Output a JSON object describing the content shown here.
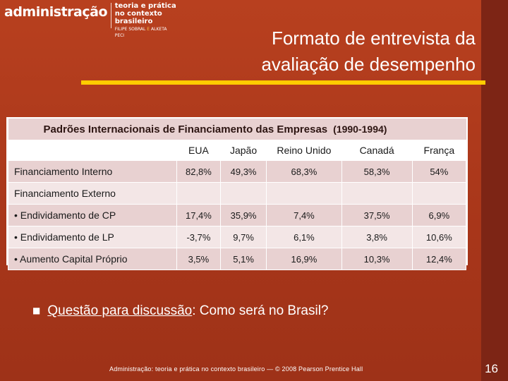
{
  "header": {
    "logo_main": "administração",
    "logo_sub_line1": "teoria e prática",
    "logo_sub_line2": "no contexto brasileiro",
    "logo_author1": "FILIPE SOBRAL",
    "logo_amp": "E",
    "logo_author2": "ALKETA PECI"
  },
  "slide": {
    "title_line1": "Formato de entrevista da",
    "title_line2": "avaliação de desempenho",
    "question_label": "Questão para discussão",
    "question_rest": ": Como será no Brasil?",
    "footer": "Administração: teoria e prática no contexto brasileiro — © 2008 Pearson Prentice Hall",
    "page_number": "16"
  },
  "table": {
    "caption": "Padrões Internacionais de Financiamento das Empresas",
    "caption_years": "(1990-1994)",
    "columns": [
      "",
      "EUA",
      "Japão",
      "Reino Unido",
      "Canadá",
      "França"
    ],
    "rows": [
      {
        "label": "Financiamento Interno",
        "values": [
          "82,8%",
          "49,3%",
          "68,3%",
          "58,3%",
          "54%"
        ]
      },
      {
        "label": "Financiamento Externo",
        "values": [
          "",
          "",
          "",
          "",
          ""
        ]
      },
      {
        "label": "• Endividamento de CP",
        "values": [
          "17,4%",
          "35,9%",
          "7,4%",
          "37,5%",
          "6,9%"
        ]
      },
      {
        "label": "• Endividamento de LP",
        "values": [
          "-3,7%",
          "9,7%",
          "6,1%",
          "3,8%",
          "10,6%"
        ]
      },
      {
        "label": "• Aumento Capital Próprio",
        "values": [
          "3,5%",
          "5,1%",
          "16,9%",
          "10,3%",
          "12,4%"
        ]
      }
    ]
  },
  "colors": {
    "background": "#b23a1c",
    "accent_bar": "#ffcc00",
    "table_header": "#c98a8a"
  }
}
